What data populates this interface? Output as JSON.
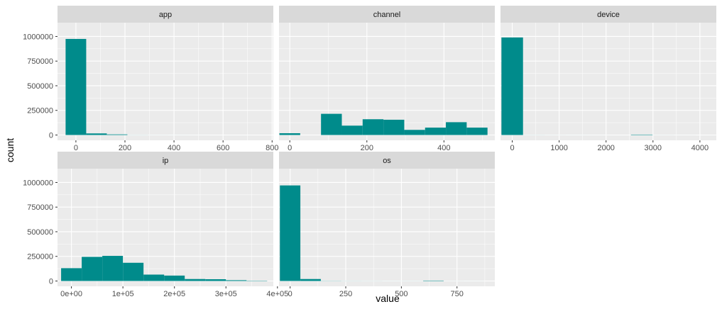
{
  "chart_data": {
    "type": "bar",
    "xlabel": "value",
    "ylabel": "count",
    "y_ticks": [
      {
        "value": 0,
        "label": "0"
      },
      {
        "value": 250000,
        "label": "250000"
      },
      {
        "value": 500000,
        "label": "500000"
      },
      {
        "value": 750000,
        "label": "750000"
      },
      {
        "value": 1000000,
        "label": "1000000"
      }
    ],
    "ylim": [
      -54000,
      1140000
    ],
    "colors": {
      "bar": "#008b8b",
      "panel": "#ebebeb",
      "strip": "#d9d9d9",
      "grid": "#ffffff"
    },
    "facets": [
      {
        "name": "app",
        "xlim": [
          -75,
          805
        ],
        "x_ticks": [
          {
            "value": 0,
            "label": "0"
          },
          {
            "value": 200,
            "label": "200"
          },
          {
            "value": 400,
            "label": "400"
          },
          {
            "value": 600,
            "label": "600"
          },
          {
            "value": 800,
            "label": "800"
          }
        ],
        "bins": [
          [
            -42,
            42,
            975000
          ],
          [
            42,
            126,
            16000
          ],
          [
            126,
            210,
            6000
          ],
          [
            210,
            294,
            600
          ],
          [
            294,
            378,
            300
          ],
          [
            378,
            462,
            200
          ],
          [
            462,
            546,
            150
          ],
          [
            546,
            630,
            100
          ],
          [
            630,
            714,
            80
          ],
          [
            714,
            798,
            60
          ]
        ]
      },
      {
        "name": "channel",
        "xlim": [
          -28,
          532
        ],
        "x_ticks": [
          {
            "value": 0,
            "label": "0"
          },
          {
            "value": 200,
            "label": "200"
          },
          {
            "value": 400,
            "label": "400"
          }
        ],
        "bins": [
          [
            -27,
            27,
            18000
          ],
          [
            27,
            81,
            0
          ],
          [
            81,
            135,
            215000
          ],
          [
            135,
            189,
            95000
          ],
          [
            189,
            243,
            160000
          ],
          [
            243,
            297,
            155000
          ],
          [
            297,
            351,
            52000
          ],
          [
            351,
            405,
            75000
          ],
          [
            405,
            459,
            130000
          ],
          [
            459,
            513,
            75000
          ]
        ]
      },
      {
        "name": "device",
        "xlim": [
          -250,
          4350
        ],
        "x_ticks": [
          {
            "value": 0,
            "label": "0"
          },
          {
            "value": 1000,
            "label": "1000"
          },
          {
            "value": 2000,
            "label": "2000"
          },
          {
            "value": 3000,
            "label": "3000"
          },
          {
            "value": 4000,
            "label": "4000"
          }
        ],
        "bins": [
          [
            -230,
            230,
            990000
          ],
          [
            230,
            690,
            500
          ],
          [
            690,
            1150,
            300
          ],
          [
            1150,
            1610,
            200
          ],
          [
            1610,
            2070,
            150
          ],
          [
            2070,
            2530,
            100
          ],
          [
            2530,
            2990,
            4000
          ],
          [
            2990,
            3450,
            300
          ],
          [
            3450,
            3910,
            150
          ],
          [
            3910,
            4370,
            100
          ]
        ]
      },
      {
        "name": "ip",
        "xlim": [
          -27000,
          392000
        ],
        "x_ticks": [
          {
            "value": 0,
            "label": "0e+00"
          },
          {
            "value": 100000,
            "label": "1e+05"
          },
          {
            "value": 200000,
            "label": "2e+05"
          },
          {
            "value": 300000,
            "label": "3e+05"
          },
          {
            "value": 400000,
            "label": "4e+05"
          }
        ],
        "bins": [
          [
            -20000,
            20000,
            130000
          ],
          [
            20000,
            60000,
            245000
          ],
          [
            60000,
            100000,
            255000
          ],
          [
            100000,
            140000,
            185000
          ],
          [
            140000,
            180000,
            65000
          ],
          [
            180000,
            220000,
            55000
          ],
          [
            220000,
            260000,
            20000
          ],
          [
            260000,
            300000,
            18000
          ],
          [
            300000,
            340000,
            8000
          ],
          [
            340000,
            380000,
            3000
          ]
        ]
      },
      {
        "name": "os",
        "xlim": [
          -50,
          920
        ],
        "x_ticks": [
          {
            "value": 0,
            "label": "0"
          },
          {
            "value": 250,
            "label": "250"
          },
          {
            "value": 500,
            "label": "500"
          },
          {
            "value": 750,
            "label": "750"
          }
        ],
        "bins": [
          [
            -46,
            46,
            970000
          ],
          [
            46,
            138,
            20000
          ],
          [
            138,
            230,
            1500
          ],
          [
            230,
            322,
            800
          ],
          [
            322,
            414,
            600
          ],
          [
            414,
            506,
            400
          ],
          [
            506,
            598,
            500
          ],
          [
            598,
            690,
            4000
          ],
          [
            690,
            782,
            300
          ],
          [
            782,
            874,
            200
          ]
        ]
      }
    ]
  }
}
